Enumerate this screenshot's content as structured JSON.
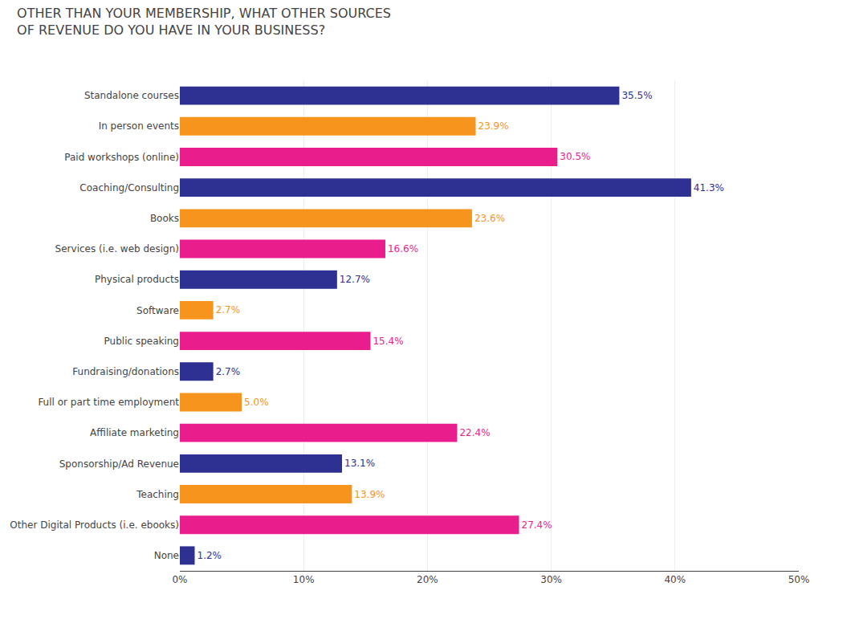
{
  "chart_data": {
    "type": "bar",
    "orientation": "horizontal",
    "title": "OTHER THAN YOUR MEMBERSHIP, WHAT OTHER SOURCES\nOF REVENUE DO YOU HAVE IN YOUR BUSINESS?",
    "categories": [
      "Standalone courses",
      "In person events",
      "Paid workshops (online)",
      "Coaching/Consulting",
      "Books",
      "Services (i.e. web design)",
      "Physical products",
      "Software",
      "Public speaking",
      "Fundraising/donations",
      "Full or part time employment",
      "Affiliate marketing",
      "Sponsorship/Ad Revenue",
      "Teaching",
      "Other Digital Products (i.e. ebooks)",
      "None"
    ],
    "values": [
      35.5,
      23.9,
      30.5,
      41.3,
      23.6,
      16.6,
      12.7,
      2.7,
      15.4,
      2.7,
      5.0,
      22.4,
      13.1,
      13.9,
      27.4,
      1.2
    ],
    "value_labels": [
      "35.5%",
      "23.9%",
      "30.5%",
      "41.3%",
      "23.6%",
      "16.6%",
      "12.7%",
      "2.7%",
      "15.4%",
      "2.7%",
      "5.0%",
      "22.4%",
      "13.1%",
      "13.9%",
      "27.4%",
      "1.2%"
    ],
    "data_labels": true,
    "colors": [
      "#2e3192",
      "#f7941d",
      "#e91e8c",
      "#2e3192",
      "#f7941d",
      "#e91e8c",
      "#2e3192",
      "#f7941d",
      "#e91e8c",
      "#2e3192",
      "#f7941d",
      "#e91e8c",
      "#2e3192",
      "#f7941d",
      "#e91e8c",
      "#2e3192"
    ],
    "xlim": [
      0,
      50
    ],
    "xticks": [
      {
        "value": 0,
        "label": "0%"
      },
      {
        "value": 10,
        "label": "10%"
      },
      {
        "value": 20,
        "label": "20%"
      },
      {
        "value": 30,
        "label": "30%"
      },
      {
        "value": 40,
        "label": "40%"
      },
      {
        "value": 50,
        "label": "50%"
      }
    ],
    "grid": true
  }
}
